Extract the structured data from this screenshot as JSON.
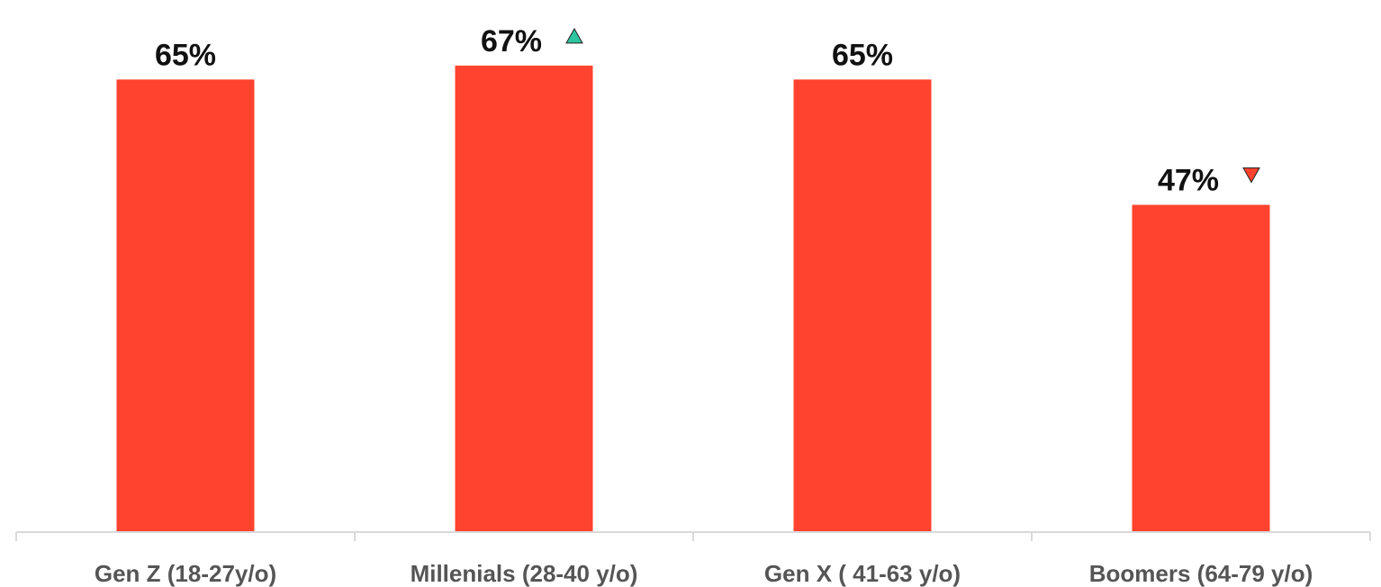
{
  "chart_data": {
    "type": "bar",
    "categories": [
      "Gen Z (18-27y/o)",
      "Millenials (28-40 y/o)",
      "Gen X ( 41-63 y/o)",
      "Boomers (64-79 y/o)"
    ],
    "values": [
      65,
      67,
      65,
      47
    ],
    "value_labels": [
      "65%",
      "67%",
      "65%",
      "47%"
    ],
    "markers": [
      "",
      "up",
      "",
      "down"
    ],
    "ylim": [
      0,
      75
    ],
    "grid": false,
    "title": "",
    "xlabel": "",
    "ylabel": ""
  },
  "colors": {
    "bar": "#ff432e",
    "marker_up": "#2ec4a0",
    "marker_down": "#ff432e",
    "axis": "#d9d9d9",
    "value_text": "#111111",
    "tick_text": "#555555"
  }
}
